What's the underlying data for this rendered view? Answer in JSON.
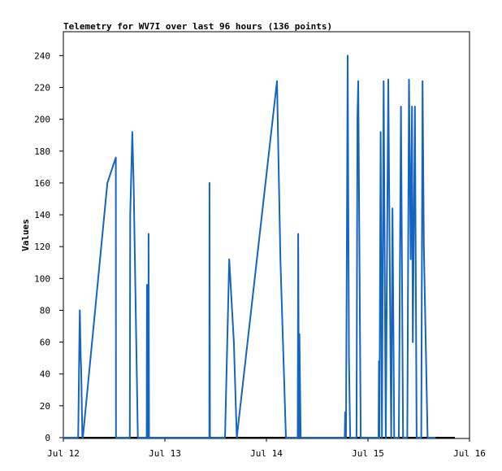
{
  "chart_data": {
    "type": "line",
    "title": "Telemetry for WV7I over last 96 hours (136 points)",
    "xlabel": "",
    "ylabel": "Values",
    "x_unit": "hours since Jul 12 00:00",
    "xlim": [
      0,
      96
    ],
    "ylim": [
      0,
      255
    ],
    "x_ticks": [
      {
        "label": "Jul 12",
        "value": 0
      },
      {
        "label": "Jul 13",
        "value": 24
      },
      {
        "label": "Jul 14",
        "value": 48
      },
      {
        "label": "Jul 15",
        "value": 72
      },
      {
        "label": "Jul 16",
        "value": 96
      }
    ],
    "y_ticks": [
      0,
      20,
      40,
      60,
      80,
      100,
      120,
      140,
      160,
      180,
      200,
      220,
      240
    ],
    "grid": false,
    "line_color": "#1565c0",
    "series": [
      {
        "name": "",
        "points": [
          [
            0,
            0
          ],
          [
            3.5,
            0
          ],
          [
            3.55,
            10
          ],
          [
            3.8,
            65
          ],
          [
            3.9,
            80
          ],
          [
            4.1,
            50
          ],
          [
            4.2,
            44
          ],
          [
            4.5,
            0
          ],
          [
            4.6,
            0
          ],
          [
            10.4,
            160
          ],
          [
            12.4,
            176
          ],
          [
            12.45,
            0
          ],
          [
            15.7,
            0
          ],
          [
            15.8,
            140
          ],
          [
            16.3,
            192
          ],
          [
            16.6,
            160
          ],
          [
            17.6,
            0
          ],
          [
            19.7,
            0
          ],
          [
            19.75,
            96
          ],
          [
            19.85,
            0
          ],
          [
            20.1,
            0
          ],
          [
            20.15,
            128
          ],
          [
            20.25,
            0
          ],
          [
            34.5,
            0
          ],
          [
            34.55,
            160
          ],
          [
            34.65,
            0
          ],
          [
            38.2,
            0
          ],
          [
            39.2,
            112
          ],
          [
            40.3,
            60
          ],
          [
            41,
            0
          ],
          [
            50.5,
            224
          ],
          [
            51.3,
            112
          ],
          [
            52.6,
            0
          ],
          [
            55.4,
            0
          ],
          [
            55.5,
            128
          ],
          [
            55.7,
            0
          ],
          [
            55.8,
            65
          ],
          [
            56.1,
            0
          ],
          [
            66.5,
            0
          ],
          [
            66.6,
            16
          ],
          [
            66.8,
            0
          ],
          [
            67,
            120
          ],
          [
            67.2,
            240
          ],
          [
            67.5,
            50
          ],
          [
            67.8,
            0
          ],
          [
            69.3,
            0
          ],
          [
            69.5,
            200
          ],
          [
            69.7,
            224
          ],
          [
            70.3,
            0
          ],
          [
            74.5,
            0
          ],
          [
            74.6,
            48
          ],
          [
            74.7,
            0
          ],
          [
            75,
            192
          ],
          [
            75.3,
            0
          ],
          [
            75.7,
            224
          ],
          [
            76.2,
            0
          ],
          [
            76.8,
            225
          ],
          [
            77.3,
            60
          ],
          [
            77.5,
            0
          ],
          [
            77.8,
            144
          ],
          [
            78.2,
            0
          ],
          [
            79.3,
            0
          ],
          [
            79.8,
            208
          ],
          [
            80.3,
            0
          ],
          [
            81.3,
            0
          ],
          [
            81.7,
            225
          ],
          [
            82.1,
            112
          ],
          [
            82.4,
            208
          ],
          [
            82.6,
            60
          ],
          [
            83.1,
            208
          ],
          [
            83.5,
            0
          ],
          [
            84.6,
            0
          ],
          [
            84.9,
            224
          ],
          [
            85.2,
            120
          ],
          [
            86.1,
            0
          ],
          [
            88,
            0
          ]
        ]
      }
    ]
  }
}
